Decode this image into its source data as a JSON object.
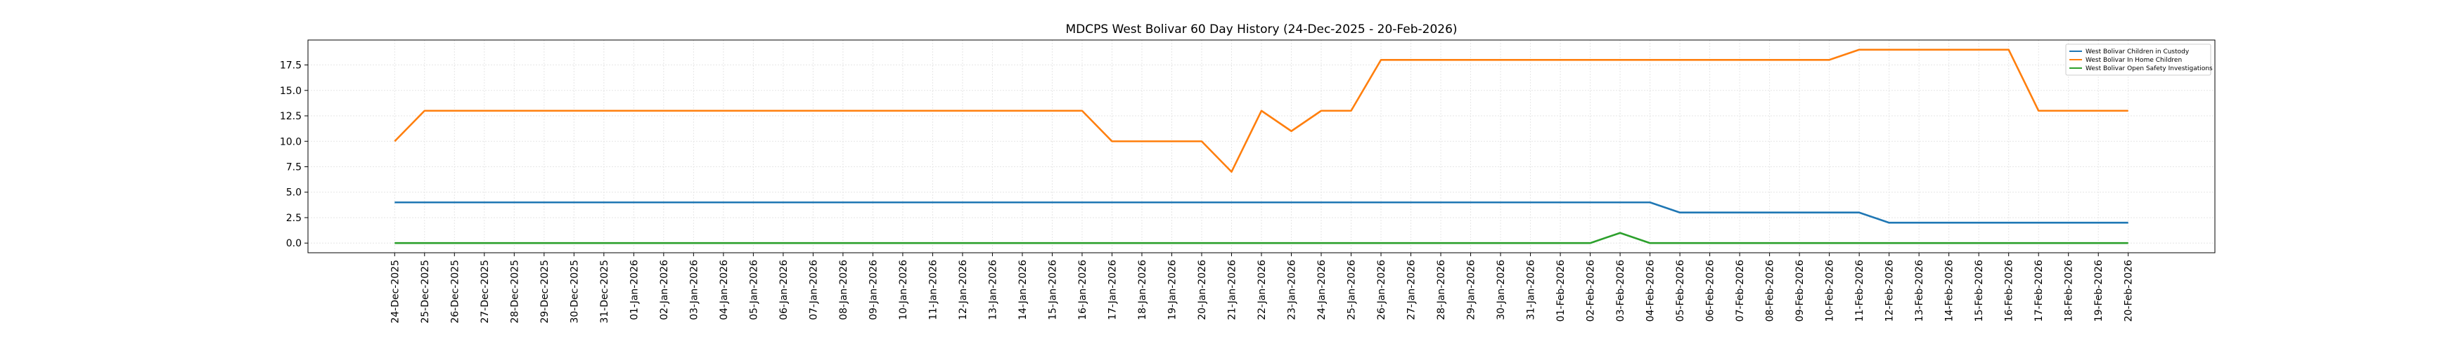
{
  "chart_data": {
    "type": "line",
    "title": "MDCPS West Bolivar 60 Day History (24-Dec-2025 - 20-Feb-2026)",
    "xlabel": "",
    "ylabel": "",
    "ylim": [
      -0.95,
      19.95
    ],
    "yticks": [
      "0.0",
      "2.5",
      "5.0",
      "7.5",
      "10.0",
      "12.5",
      "15.0",
      "17.5"
    ],
    "grid": true,
    "legend_position": "top-right",
    "x": [
      "24-Dec-2025",
      "25-Dec-2025",
      "26-Dec-2025",
      "27-Dec-2025",
      "28-Dec-2025",
      "29-Dec-2025",
      "30-Dec-2025",
      "31-Dec-2025",
      "01-Jan-2026",
      "02-Jan-2026",
      "03-Jan-2026",
      "04-Jan-2026",
      "05-Jan-2026",
      "06-Jan-2026",
      "07-Jan-2026",
      "08-Jan-2026",
      "09-Jan-2026",
      "10-Jan-2026",
      "11-Jan-2026",
      "12-Jan-2026",
      "13-Jan-2026",
      "14-Jan-2026",
      "15-Jan-2026",
      "16-Jan-2026",
      "17-Jan-2026",
      "18-Jan-2026",
      "19-Jan-2026",
      "20-Jan-2026",
      "21-Jan-2026",
      "22-Jan-2026",
      "23-Jan-2026",
      "24-Jan-2026",
      "25-Jan-2026",
      "26-Jan-2026",
      "27-Jan-2026",
      "28-Jan-2026",
      "29-Jan-2026",
      "30-Jan-2026",
      "31-Jan-2026",
      "01-Feb-2026",
      "02-Feb-2026",
      "03-Feb-2026",
      "04-Feb-2026",
      "05-Feb-2026",
      "06-Feb-2026",
      "07-Feb-2026",
      "08-Feb-2026",
      "09-Feb-2026",
      "10-Feb-2026",
      "11-Feb-2026",
      "12-Feb-2026",
      "13-Feb-2026",
      "14-Feb-2026",
      "15-Feb-2026",
      "16-Feb-2026",
      "17-Feb-2026",
      "18-Feb-2026",
      "19-Feb-2026",
      "20-Feb-2026"
    ],
    "series": [
      {
        "name": "West Bolivar Children in Custody",
        "color": "#1f77b4",
        "values": [
          4,
          4,
          4,
          4,
          4,
          4,
          4,
          4,
          4,
          4,
          4,
          4,
          4,
          4,
          4,
          4,
          4,
          4,
          4,
          4,
          4,
          4,
          4,
          4,
          4,
          4,
          4,
          4,
          4,
          4,
          4,
          4,
          4,
          4,
          4,
          4,
          4,
          4,
          4,
          4,
          4,
          4,
          4,
          3,
          3,
          3,
          3,
          3,
          3,
          3,
          2,
          2,
          2,
          2,
          2,
          2,
          2,
          2,
          2
        ]
      },
      {
        "name": "West Bolivar In Home Children",
        "color": "#ff7f0e",
        "values": [
          10,
          13,
          13,
          13,
          13,
          13,
          13,
          13,
          13,
          13,
          13,
          13,
          13,
          13,
          13,
          13,
          13,
          13,
          13,
          13,
          13,
          13,
          13,
          13,
          10,
          10,
          10,
          10,
          7,
          13,
          11,
          13,
          13,
          18,
          18,
          18,
          18,
          18,
          18,
          18,
          18,
          18,
          18,
          18,
          18,
          18,
          18,
          18,
          18,
          19,
          19,
          19,
          19,
          19,
          19,
          13,
          13,
          13,
          13
        ]
      },
      {
        "name": "West Bolivar Open Safety Investigations",
        "color": "#2ca02c",
        "values": [
          0,
          0,
          0,
          0,
          0,
          0,
          0,
          0,
          0,
          0,
          0,
          0,
          0,
          0,
          0,
          0,
          0,
          0,
          0,
          0,
          0,
          0,
          0,
          0,
          0,
          0,
          0,
          0,
          0,
          0,
          0,
          0,
          0,
          0,
          0,
          0,
          0,
          0,
          0,
          0,
          0,
          1,
          0,
          0,
          0,
          0,
          0,
          0,
          0,
          0,
          0,
          0,
          0,
          0,
          0,
          0,
          0,
          0,
          0
        ]
      }
    ]
  }
}
